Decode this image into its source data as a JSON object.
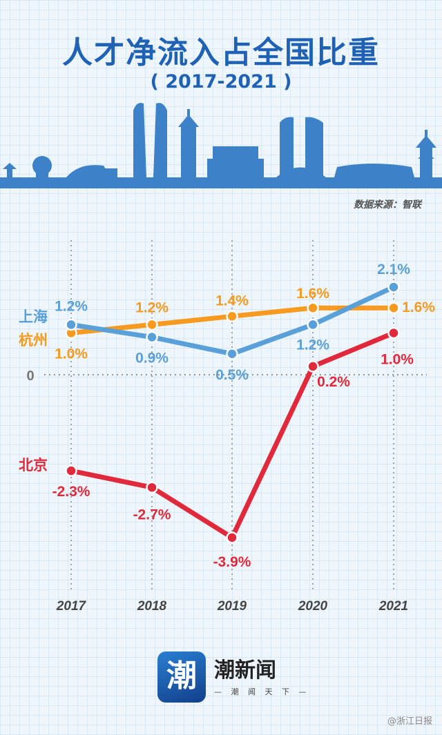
{
  "title": "人才净流入占全国比重",
  "subtitle": "( 2017-2021 )",
  "source": "数据来源：智联",
  "logo": {
    "glyph": "潮",
    "name": "潮新闻",
    "tagline": "— 潮 闻 天 下 —"
  },
  "watermark": "@浙江日报",
  "colors": {
    "title": "#1f62b5",
    "shanghai": "#5aa0d8",
    "hangzhou": "#f79a20",
    "beijing": "#e02a3c",
    "skyline": "#3d82c8"
  },
  "chart_data": {
    "type": "line",
    "categories": [
      "2017",
      "2018",
      "2019",
      "2020",
      "2021"
    ],
    "zero_label": "0",
    "series": [
      {
        "name": "上海",
        "values": [
          1.2,
          0.9,
          0.5,
          1.2,
          2.1
        ],
        "labels": [
          "1.2%",
          "0.9%",
          "0.5%",
          "1.2%",
          "2.1%"
        ]
      },
      {
        "name": "杭州",
        "values": [
          1.0,
          1.2,
          1.4,
          1.6,
          1.6
        ],
        "labels": [
          "1.0%",
          "1.2%",
          "1.4%",
          "1.6%",
          "1.6%"
        ]
      },
      {
        "name": "北京",
        "values": [
          -2.3,
          -2.7,
          -3.9,
          0.2,
          1.0
        ],
        "labels": [
          "-2.3%",
          "-2.7%",
          "-3.9%",
          "0.2%",
          "1.0%"
        ]
      }
    ],
    "grid": "vertical dotted lines",
    "units": "%"
  }
}
